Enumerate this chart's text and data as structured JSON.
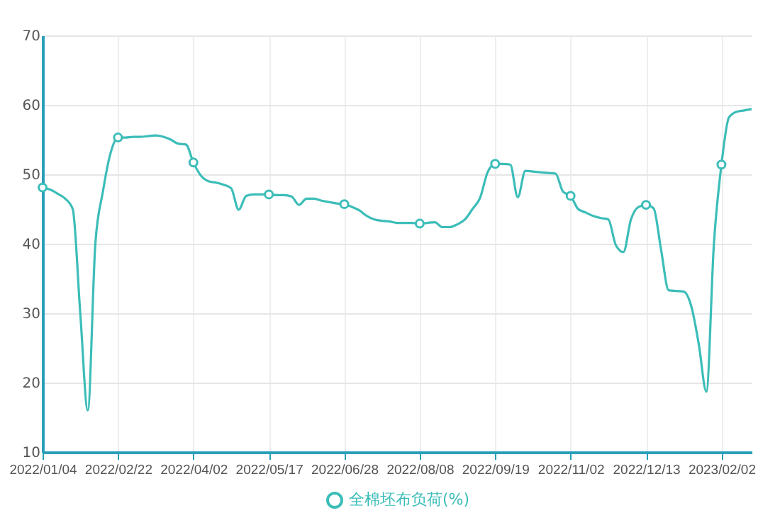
{
  "chart_data": {
    "type": "line",
    "categories": [
      "2022/01/04",
      null,
      null,
      null,
      null,
      null,
      null,
      null,
      null,
      null,
      "2022/02/22",
      null,
      null,
      null,
      null,
      null,
      null,
      null,
      null,
      null,
      "2022/04/02",
      null,
      null,
      null,
      null,
      null,
      null,
      null,
      null,
      null,
      "2022/05/17",
      null,
      null,
      null,
      null,
      null,
      null,
      null,
      null,
      null,
      "2022/06/28",
      null,
      null,
      null,
      null,
      null,
      null,
      null,
      null,
      null,
      "2022/08/08",
      null,
      null,
      null,
      null,
      null,
      null,
      null,
      null,
      null,
      "2022/09/19",
      null,
      null,
      null,
      null,
      null,
      null,
      null,
      null,
      null,
      "2022/11/02",
      null,
      null,
      null,
      null,
      null,
      null,
      null,
      null,
      null,
      "2022/12/13",
      null,
      null,
      null,
      null,
      null,
      null,
      null,
      null,
      null,
      "2023/02/02",
      null,
      null,
      null,
      null
    ],
    "series": [
      {
        "name": "全棉坯布负荷(%)",
        "color": "#3cbdb8",
        "values": [
          48.1,
          47.8,
          47.2,
          46.5,
          45.0,
          30.0,
          16.0,
          40.0,
          47.5,
          53.0,
          55.3,
          55.3,
          55.4,
          55.4,
          55.5,
          55.6,
          55.4,
          55.0,
          54.4,
          54.3,
          51.7,
          49.8,
          49.0,
          48.8,
          48.5,
          48.0,
          44.9,
          46.9,
          47.1,
          47.1,
          47.1,
          47.0,
          47.0,
          46.8,
          45.6,
          46.5,
          46.5,
          46.2,
          46.0,
          45.8,
          45.7,
          45.3,
          44.8,
          44.0,
          43.5,
          43.3,
          43.2,
          43.0,
          43.0,
          43.0,
          42.9,
          43.0,
          43.1,
          42.4,
          42.4,
          42.8,
          43.5,
          45.0,
          46.6,
          50.3,
          51.5,
          51.5,
          51.4,
          46.7,
          50.5,
          50.4,
          50.3,
          50.2,
          50.1,
          47.5,
          46.9,
          45.0,
          44.5,
          44.0,
          43.7,
          43.5,
          39.8,
          38.8,
          43.5,
          45.3,
          45.6,
          45.1,
          39.1,
          33.3,
          33.2,
          33.1,
          31.0,
          25.5,
          18.7,
          40.0,
          51.4,
          58.2,
          59.0,
          59.2,
          59.4
        ]
      },
      {
        "type": "scatter",
        "marker": "circle",
        "color": "#3cbdb8",
        "values": [
          48.1,
          null,
          null,
          null,
          null,
          null,
          null,
          null,
          null,
          null,
          55.3,
          null,
          null,
          null,
          null,
          null,
          null,
          null,
          null,
          null,
          51.7,
          null,
          null,
          null,
          null,
          null,
          null,
          null,
          null,
          null,
          47.1,
          null,
          null,
          null,
          null,
          null,
          null,
          null,
          null,
          null,
          45.7,
          null,
          null,
          null,
          null,
          null,
          null,
          null,
          null,
          null,
          42.9,
          null,
          null,
          null,
          null,
          null,
          null,
          null,
          null,
          null,
          51.5,
          null,
          null,
          null,
          null,
          null,
          null,
          null,
          null,
          null,
          46.9,
          null,
          null,
          null,
          null,
          null,
          null,
          null,
          null,
          null,
          45.6,
          null,
          null,
          null,
          null,
          null,
          null,
          null,
          null,
          null,
          51.4,
          null,
          null,
          null,
          null
        ]
      }
    ],
    "ylim": [
      10,
      70
    ],
    "yticks": [
      10,
      20,
      30,
      40,
      50,
      60,
      70
    ],
    "grid": true,
    "legend": "bottom",
    "line_style": "solid"
  }
}
